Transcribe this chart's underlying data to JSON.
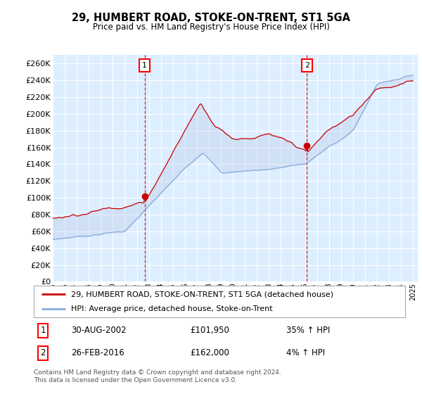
{
  "title": "29, HUMBERT ROAD, STOKE-ON-TRENT, ST1 5GA",
  "subtitle": "Price paid vs. HM Land Registry's House Price Index (HPI)",
  "ylim": [
    0,
    270000
  ],
  "yticks": [
    0,
    20000,
    40000,
    60000,
    80000,
    100000,
    120000,
    140000,
    160000,
    180000,
    200000,
    220000,
    240000,
    260000
  ],
  "sale1_x": 2002.66,
  "sale1_y": 101950,
  "sale2_x": 2016.16,
  "sale2_y": 162000,
  "sale1_date": "30-AUG-2002",
  "sale1_price": "£101,950",
  "sale1_hpi": "35% ↑ HPI",
  "sale2_date": "26-FEB-2016",
  "sale2_price": "£162,000",
  "sale2_hpi": "4% ↑ HPI",
  "line_color_property": "#cc0000",
  "line_color_hpi": "#88aadd",
  "fill_color": "#ccddf5",
  "background_color": "#ddeeff",
  "legend_label_property": "29, HUMBERT ROAD, STOKE-ON-TRENT, ST1 5GA (detached house)",
  "legend_label_hpi": "HPI: Average price, detached house, Stoke-on-Trent",
  "footer": "Contains HM Land Registry data © Crown copyright and database right 2024.\nThis data is licensed under the Open Government Licence v3.0.",
  "xticks": [
    1995,
    1996,
    1997,
    1998,
    1999,
    2000,
    2001,
    2002,
    2003,
    2004,
    2005,
    2006,
    2007,
    2008,
    2009,
    2010,
    2011,
    2012,
    2013,
    2014,
    2015,
    2016,
    2017,
    2018,
    2019,
    2020,
    2021,
    2022,
    2023,
    2024,
    2025
  ]
}
